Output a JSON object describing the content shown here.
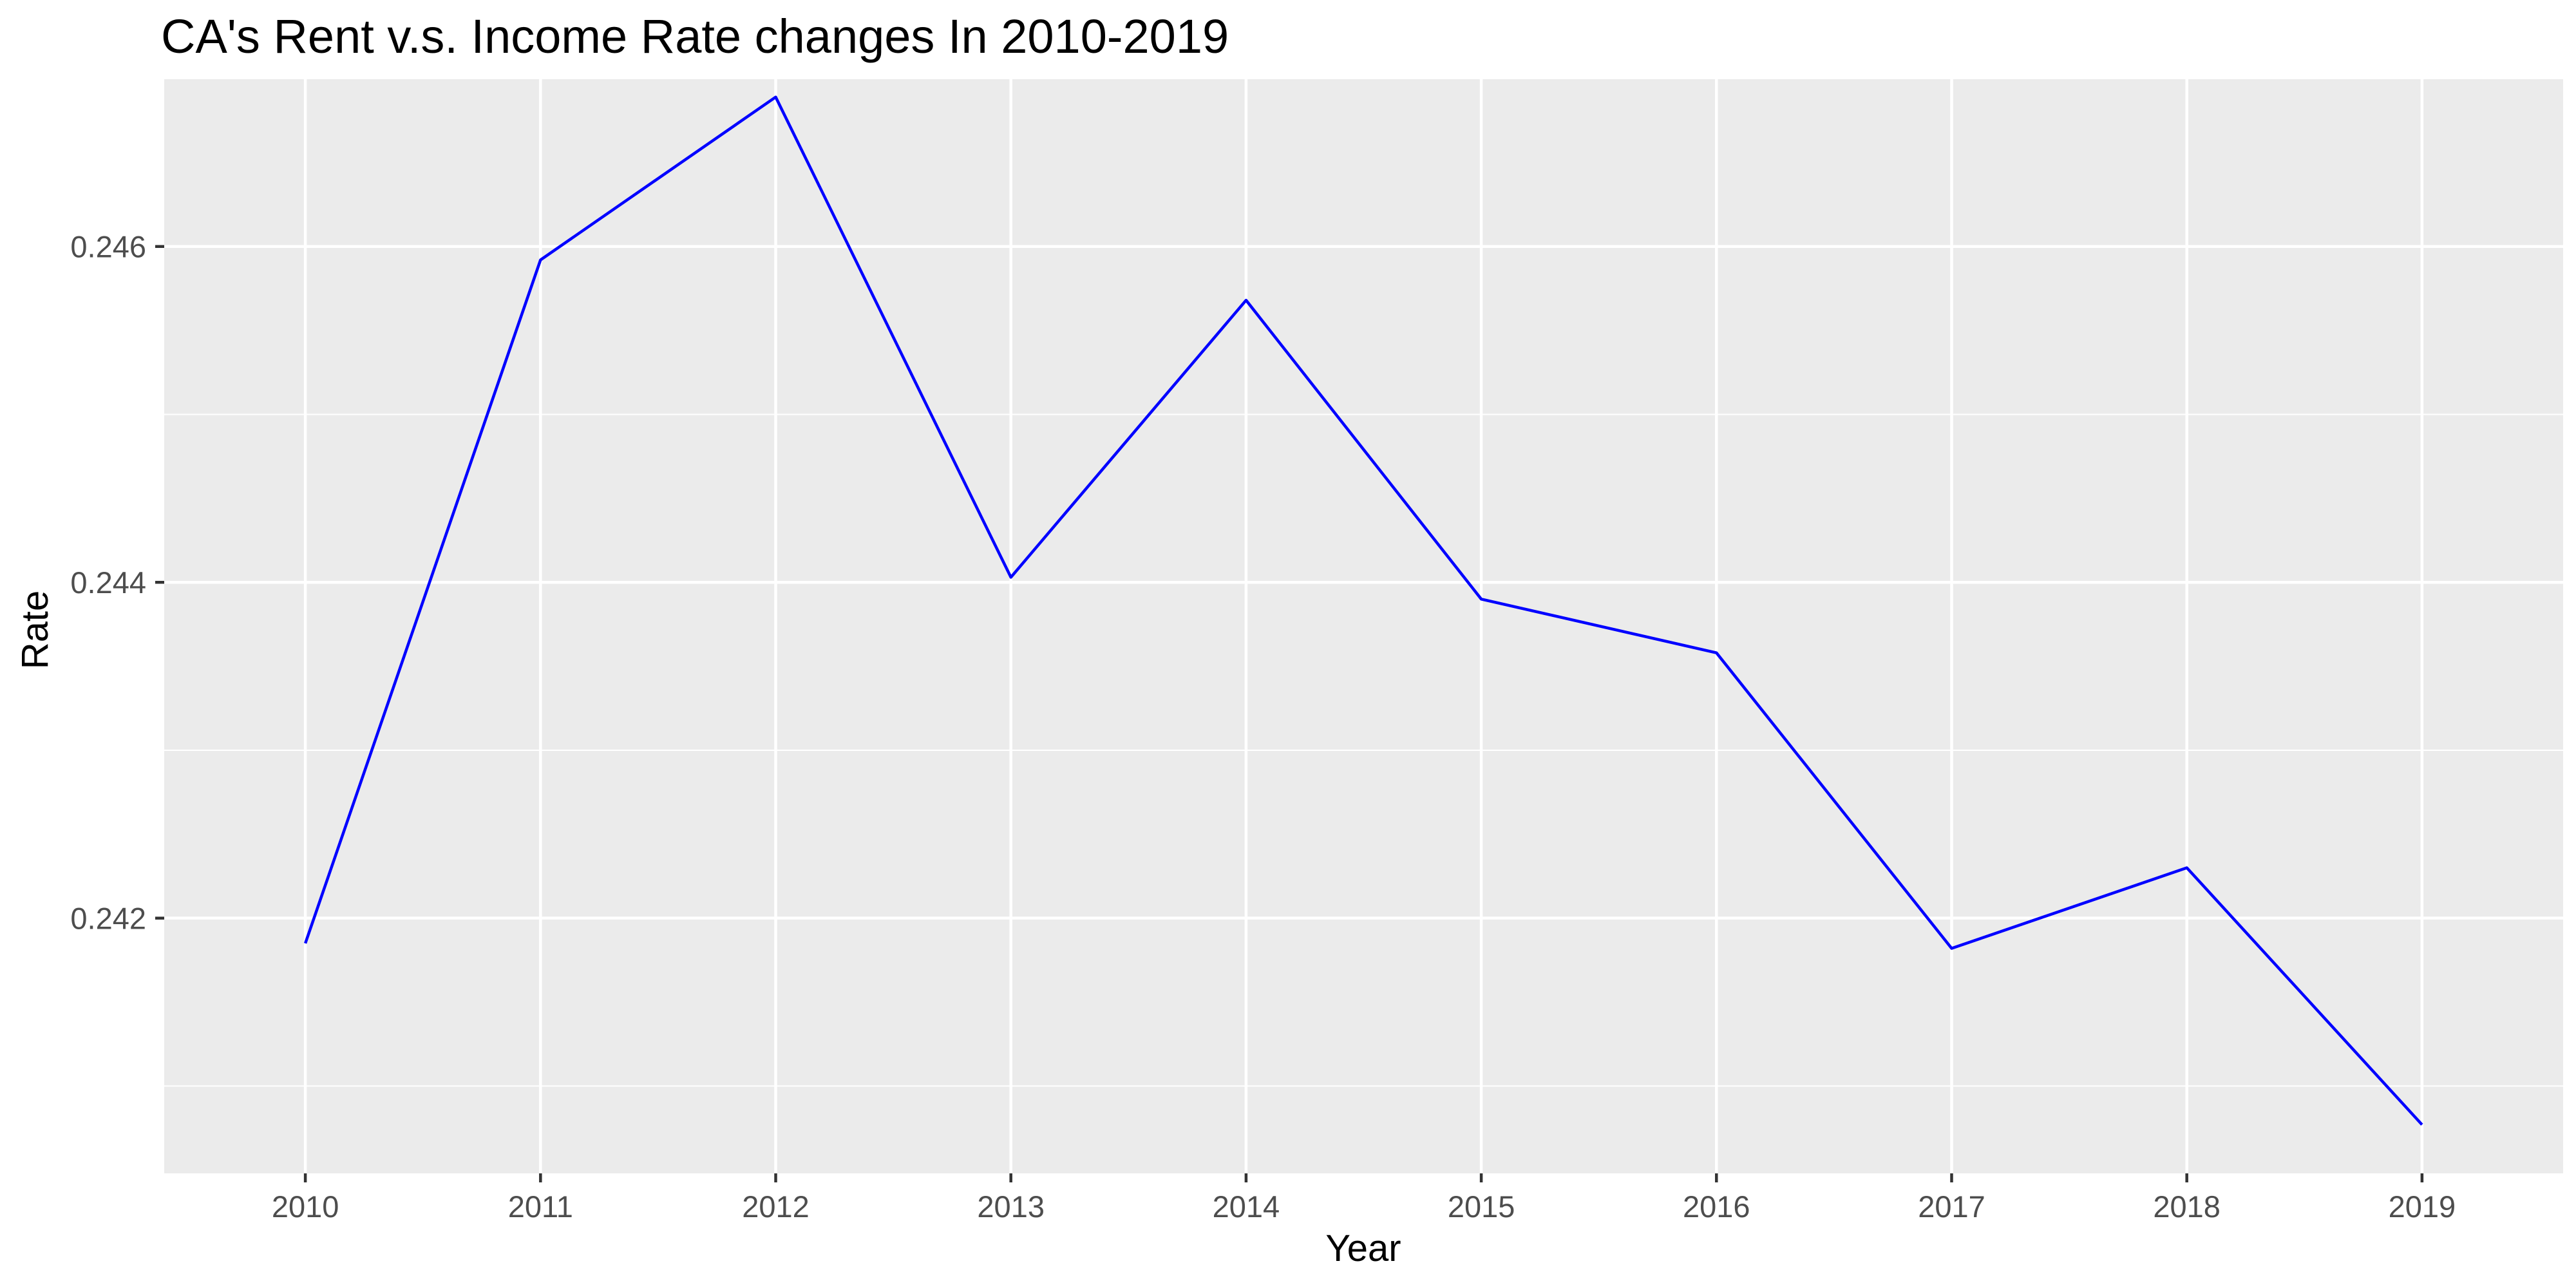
{
  "chart_data": {
    "type": "line",
    "title": "CA's Rent v.s. Income Rate changes In 2010-2019",
    "xlabel": "Year",
    "ylabel": "Rate",
    "x": [
      "2010",
      "2011",
      "2012",
      "2013",
      "2014",
      "2015",
      "2016",
      "2017",
      "2018",
      "2019"
    ],
    "series": [
      {
        "values": [
          0.24185,
          0.24592,
          0.24689,
          0.24403,
          0.24568,
          0.2439,
          0.24358,
          0.24182,
          0.2423,
          0.24077
        ]
      }
    ],
    "ylim": [
      0.24048,
      0.247
    ],
    "yticks": [
      0.242,
      0.244,
      0.246
    ],
    "ytick_labels": [
      "0.242",
      "0.244",
      "0.246"
    ],
    "grid": true,
    "colors": {
      "line": "#0000ff",
      "panel": "#ebebeb",
      "grid": "#ffffff"
    }
  }
}
